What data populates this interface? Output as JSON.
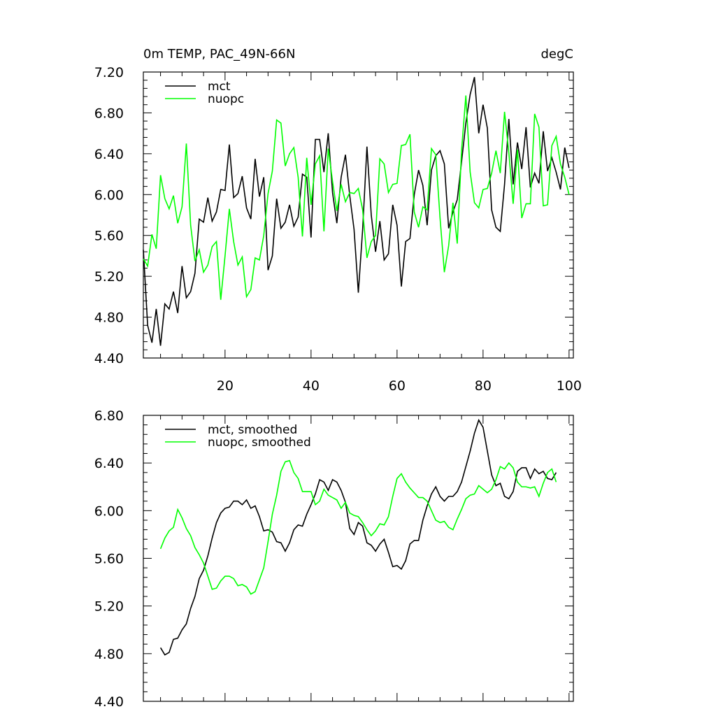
{
  "chart_data": [
    {
      "type": "line",
      "title": "0m TEMP, PAC_49N-66N",
      "units": "degC",
      "x": [
        1,
        2,
        3,
        4,
        5,
        6,
        7,
        8,
        9,
        10,
        11,
        12,
        13,
        14,
        15,
        16,
        17,
        18,
        19,
        20,
        21,
        22,
        23,
        24,
        25,
        26,
        27,
        28,
        29,
        30,
        31,
        32,
        33,
        34,
        35,
        36,
        37,
        38,
        39,
        40,
        41,
        42,
        43,
        44,
        45,
        46,
        47,
        48,
        49,
        50,
        51,
        52,
        53,
        54,
        55,
        56,
        57,
        58,
        59,
        60,
        61,
        62,
        63,
        64,
        65,
        66,
        67,
        68,
        69,
        70,
        71,
        72,
        73,
        74,
        75,
        76,
        77,
        78,
        79,
        80,
        81,
        82,
        83,
        84,
        85,
        86,
        87,
        88,
        89,
        90,
        91,
        92,
        93,
        94,
        95,
        96,
        97,
        98,
        99,
        100
      ],
      "series": [
        {
          "name": "mct",
          "color": "#000000",
          "values": [
            5.46,
            4.72,
            4.55,
            4.88,
            4.52,
            4.93,
            4.88,
            5.05,
            4.84,
            5.3,
            4.99,
            5.05,
            5.23,
            5.76,
            5.73,
            5.97,
            5.74,
            5.83,
            6.05,
            6.04,
            6.49,
            5.97,
            6.01,
            6.18,
            5.87,
            5.76,
            6.35,
            5.98,
            6.17,
            5.26,
            5.4,
            5.96,
            5.67,
            5.73,
            5.9,
            5.69,
            5.78,
            6.2,
            6.17,
            5.58,
            6.54,
            6.54,
            6.22,
            6.6,
            6.02,
            5.72,
            6.17,
            6.39,
            5.99,
            5.66,
            5.04,
            5.66,
            6.47,
            5.8,
            5.44,
            5.74,
            5.36,
            5.42,
            5.9,
            5.7,
            5.1,
            5.54,
            5.57,
            6.0,
            6.24,
            6.09,
            5.7,
            6.24,
            6.38,
            6.43,
            6.3,
            5.67,
            5.83,
            5.95,
            6.32,
            6.7,
            6.98,
            7.15,
            6.6,
            6.88,
            6.65,
            5.85,
            5.68,
            5.64,
            6.1,
            6.74,
            6.1,
            6.51,
            6.25,
            6.66,
            6.07,
            6.21,
            6.11,
            6.62,
            6.23,
            6.36,
            6.22,
            6.05,
            6.46,
            6.26
          ]
        },
        {
          "name": "nuopc",
          "color": "#00ff00",
          "values": [
            5.37,
            5.3,
            5.61,
            5.47,
            6.19,
            5.96,
            5.86,
            5.99,
            5.72,
            5.88,
            6.5,
            5.7,
            5.35,
            5.46,
            5.24,
            5.31,
            5.49,
            5.54,
            4.97,
            5.4,
            5.86,
            5.54,
            5.31,
            5.39,
            5.0,
            5.07,
            5.38,
            5.36,
            5.6,
            6.01,
            6.23,
            6.73,
            6.7,
            6.28,
            6.4,
            6.46,
            6.17,
            5.59,
            6.36,
            5.9,
            6.3,
            6.38,
            5.64,
            6.45,
            6.13,
            5.84,
            6.1,
            5.93,
            6.02,
            6.01,
            6.06,
            5.85,
            5.38,
            5.54,
            5.6,
            6.35,
            6.3,
            6.02,
            6.1,
            6.11,
            6.48,
            6.49,
            6.59,
            5.83,
            5.68,
            5.88,
            5.85,
            6.45,
            6.39,
            5.77,
            5.24,
            5.5,
            5.92,
            5.52,
            6.43,
            6.97,
            6.22,
            5.92,
            5.87,
            6.05,
            6.06,
            6.21,
            6.43,
            6.21,
            6.81,
            6.41,
            5.91,
            6.44,
            5.77,
            5.91,
            5.91,
            6.79,
            6.66,
            5.89,
            5.9,
            6.48,
            6.57,
            6.3,
            6.17,
            6.0
          ]
        }
      ],
      "xlim": [
        1,
        101
      ],
      "xticks": [
        20,
        40,
        60,
        80,
        100
      ],
      "ylim": [
        4.4,
        7.2
      ],
      "yticks": [
        {
          "value": 4.4,
          "label": "4.40"
        },
        {
          "value": 4.8,
          "label": "4.80"
        },
        {
          "value": 5.2,
          "label": "5.20"
        },
        {
          "value": 5.6,
          "label": "5.60"
        },
        {
          "value": 6.0,
          "label": "6.00"
        },
        {
          "value": 6.4,
          "label": "6.40"
        },
        {
          "value": 6.8,
          "label": "6.80"
        },
        {
          "value": 7.2,
          "label": "7.20"
        }
      ],
      "legend": "upper-left"
    },
    {
      "type": "line",
      "x": [
        5,
        6,
        7,
        8,
        9,
        10,
        11,
        12,
        13,
        14,
        15,
        16,
        17,
        18,
        19,
        20,
        21,
        22,
        23,
        24,
        25,
        26,
        27,
        28,
        29,
        30,
        31,
        32,
        33,
        34,
        35,
        36,
        37,
        38,
        39,
        40,
        41,
        42,
        43,
        44,
        45,
        46,
        47,
        48,
        49,
        50,
        51,
        52,
        53,
        54,
        55,
        56,
        57,
        58,
        59,
        60,
        61,
        62,
        63,
        64,
        65,
        66,
        67,
        68,
        69,
        70,
        71,
        72,
        73,
        74,
        75,
        76,
        77,
        78,
        79,
        80,
        81,
        82,
        83,
        84,
        85,
        86,
        87,
        88,
        89,
        90,
        91,
        92,
        93,
        94,
        95,
        96,
        97
      ],
      "series": [
        {
          "name": "mct, smoothed",
          "color": "#000000",
          "values": [
            4.85,
            4.79,
            4.81,
            4.92,
            4.93,
            5.0,
            5.05,
            5.18,
            5.28,
            5.43,
            5.5,
            5.62,
            5.77,
            5.9,
            5.98,
            6.02,
            6.03,
            6.08,
            6.08,
            6.05,
            6.09,
            6.02,
            6.04,
            5.95,
            5.83,
            5.84,
            5.82,
            5.74,
            5.73,
            5.66,
            5.73,
            5.84,
            5.88,
            5.87,
            5.97,
            6.05,
            6.14,
            6.26,
            6.24,
            6.17,
            6.26,
            6.24,
            6.17,
            6.07,
            5.85,
            5.8,
            5.9,
            5.87,
            5.73,
            5.71,
            5.66,
            5.72,
            5.76,
            5.65,
            5.53,
            5.54,
            5.51,
            5.58,
            5.72,
            5.75,
            5.75,
            5.92,
            6.04,
            6.14,
            6.2,
            6.12,
            6.08,
            6.12,
            6.12,
            6.16,
            6.24,
            6.37,
            6.5,
            6.65,
            6.76,
            6.7,
            6.5,
            6.3,
            6.21,
            6.23,
            6.12,
            6.1,
            6.16,
            6.33,
            6.36,
            6.36,
            6.27,
            6.35,
            6.31,
            6.33,
            6.27,
            6.26,
            6.32
          ]
        },
        {
          "name": "nuopc, smoothed",
          "color": "#00ff00",
          "values": [
            5.68,
            5.77,
            5.83,
            5.86,
            6.01,
            5.94,
            5.85,
            5.79,
            5.69,
            5.63,
            5.56,
            5.45,
            5.34,
            5.35,
            5.41,
            5.45,
            5.45,
            5.43,
            5.37,
            5.38,
            5.36,
            5.3,
            5.32,
            5.42,
            5.52,
            5.74,
            5.97,
            6.13,
            6.33,
            6.41,
            6.42,
            6.32,
            6.27,
            6.16,
            6.16,
            6.16,
            6.05,
            6.08,
            6.18,
            6.13,
            6.11,
            6.09,
            6.02,
            6.07,
            5.98,
            5.96,
            5.95,
            5.9,
            5.84,
            5.79,
            5.83,
            5.89,
            5.88,
            5.95,
            6.12,
            6.27,
            6.31,
            6.24,
            6.19,
            6.15,
            6.11,
            6.11,
            6.08,
            6.0,
            5.92,
            5.9,
            5.91,
            5.86,
            5.84,
            5.93,
            6.01,
            6.1,
            6.13,
            6.14,
            6.21,
            6.18,
            6.15,
            6.18,
            6.26,
            6.37,
            6.35,
            6.4,
            6.36,
            6.24,
            6.2,
            6.2,
            6.19,
            6.2,
            6.12,
            6.23,
            6.32,
            6.35,
            6.24
          ]
        }
      ],
      "xlim": [
        1,
        101
      ],
      "xticks": [
        20,
        40,
        60,
        80,
        100
      ],
      "ylim": [
        4.4,
        6.8
      ],
      "yticks": [
        {
          "value": 4.4,
          "label": "4.40"
        },
        {
          "value": 4.8,
          "label": "4.80"
        },
        {
          "value": 5.2,
          "label": "5.20"
        },
        {
          "value": 5.6,
          "label": "5.60"
        },
        {
          "value": 6.0,
          "label": "6.00"
        },
        {
          "value": 6.4,
          "label": "6.40"
        },
        {
          "value": 6.8,
          "label": "6.80"
        }
      ],
      "legend": "upper-left"
    }
  ]
}
